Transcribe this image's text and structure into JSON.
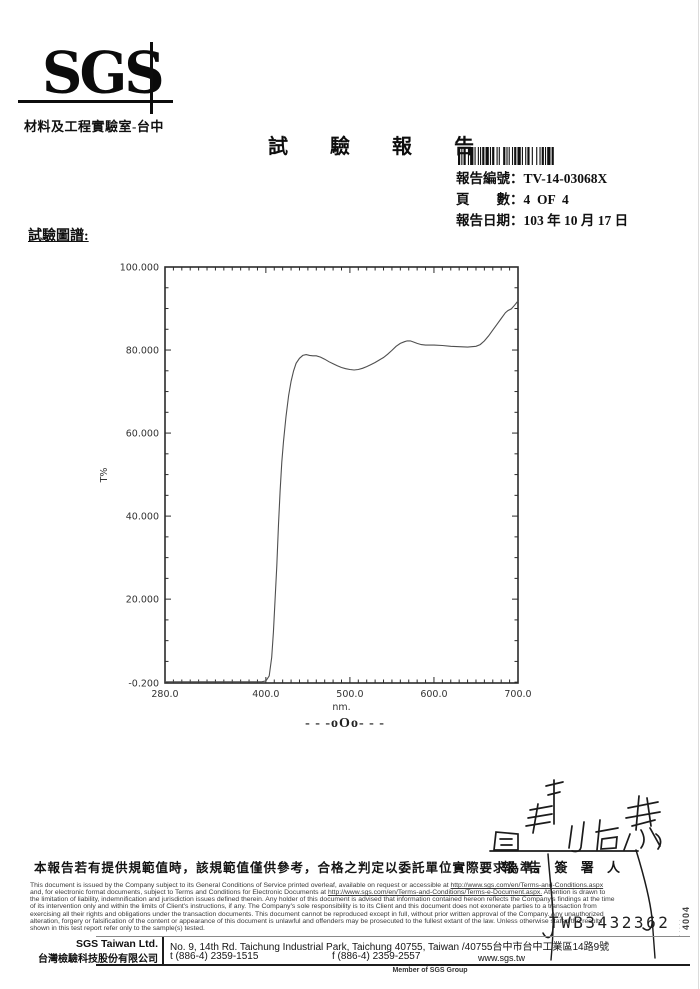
{
  "header": {
    "logo_text": "SGS",
    "lab_name": "材料及工程實驗室-台中",
    "title": "試　驗　報　告",
    "report_no_label": "報告編號：",
    "report_no_value": "TV-14-03068X",
    "page_label": "頁　　數：",
    "page_value": "4  OF  4",
    "date_label": "報告日期：",
    "date_value": "103 年 10 月 17 日"
  },
  "section": {
    "chart_heading": "試驗圖譜:"
  },
  "chart_data": {
    "type": "line",
    "title": "",
    "xlabel": "nm.",
    "ylabel": "T%",
    "xlim": [
      280,
      700
    ],
    "ylim": [
      -0.2,
      100
    ],
    "grid": false,
    "legend": "none",
    "xticks": {
      "values": [
        280,
        400,
        500,
        600,
        700
      ],
      "labels": [
        "280.0",
        "400.0",
        "500.0",
        "600.0",
        "700.0"
      ]
    },
    "yticks": {
      "values": [
        100,
        80,
        60,
        40,
        20,
        -0.2
      ],
      "labels": [
        "100.000",
        "80.000",
        "60.000",
        "40.000",
        "20.000",
        "-0.200"
      ]
    },
    "x_minor_step": 10,
    "y_minor_step": 5,
    "series": [
      {
        "name": "transmittance-curve",
        "points": [
          [
            280,
            0.1
          ],
          [
            300,
            0.1
          ],
          [
            320,
            0.1
          ],
          [
            340,
            0.1
          ],
          [
            360,
            0.1
          ],
          [
            380,
            0.1
          ],
          [
            395,
            0.1
          ],
          [
            400,
            0.3
          ],
          [
            404,
            1.5
          ],
          [
            407,
            6
          ],
          [
            409,
            12
          ],
          [
            411,
            20
          ],
          [
            413,
            28
          ],
          [
            415,
            38
          ],
          [
            417,
            46
          ],
          [
            419,
            53
          ],
          [
            421,
            58
          ],
          [
            424,
            64
          ],
          [
            427,
            69
          ],
          [
            430,
            72.5
          ],
          [
            433,
            75
          ],
          [
            436,
            76.8
          ],
          [
            440,
            78
          ],
          [
            444,
            78.7
          ],
          [
            448,
            78.9
          ],
          [
            452,
            78.7
          ],
          [
            456,
            78.6
          ],
          [
            460,
            78.6
          ],
          [
            465,
            78.3
          ],
          [
            470,
            77.8
          ],
          [
            475,
            77.2
          ],
          [
            480,
            76.7
          ],
          [
            485,
            76.2
          ],
          [
            490,
            75.8
          ],
          [
            495,
            75.5
          ],
          [
            500,
            75.3
          ],
          [
            505,
            75.2
          ],
          [
            510,
            75.3
          ],
          [
            515,
            75.6
          ],
          [
            520,
            76
          ],
          [
            525,
            76.5
          ],
          [
            530,
            77
          ],
          [
            535,
            77.6
          ],
          [
            540,
            78.2
          ],
          [
            545,
            79
          ],
          [
            550,
            79.9
          ],
          [
            555,
            80.9
          ],
          [
            560,
            81.6
          ],
          [
            565,
            82
          ],
          [
            568,
            82.2
          ],
          [
            572,
            82.2
          ],
          [
            576,
            81.9
          ],
          [
            580,
            81.6
          ],
          [
            585,
            81.3
          ],
          [
            590,
            81.2
          ],
          [
            600,
            81.2
          ],
          [
            610,
            81.1
          ],
          [
            620,
            80.9
          ],
          [
            630,
            80.8
          ],
          [
            640,
            80.7
          ],
          [
            650,
            80.9
          ],
          [
            655,
            81.3
          ],
          [
            660,
            82.2
          ],
          [
            665,
            83.4
          ],
          [
            670,
            84.8
          ],
          [
            675,
            86.2
          ],
          [
            680,
            87.6
          ],
          [
            685,
            89
          ],
          [
            688,
            89.5
          ],
          [
            692,
            89.9
          ],
          [
            696,
            90.8
          ],
          [
            700,
            91.8
          ]
        ]
      }
    ]
  },
  "separator": "- - -oOo- - -",
  "footer": {
    "cn_note": "本報告若有提供規範值時，該規範值僅供參考，合格之判定以委託單位實際要求為準。",
    "signer_label": "報 告 簽 署 人",
    "stamp_number": "TWB3432362",
    "side_stamp": "4004",
    "side_marks": "·····",
    "disclaimer": {
      "l1_pre": "This document is issued by the Company subject to its General Conditions of Service printed overleaf, available on request or accessible at ",
      "l1_url": "http://www.sgs.com/en/Terms-and-Conditions.aspx",
      "l2_pre": "and, for electronic format documents, subject to Terms and Conditions for Electronic Documents at ",
      "l2_url": "http://www.sgs.com/en/Terms-and-Conditions/Terms-e-Document.aspx.",
      "l2_post": " Attention is drawn to",
      "l3": "the limitation of liability, indemnification and jurisdiction issues defined therein. Any holder of this document is advised that information contained hereon reflects the Company's findings at the time",
      "l4": "of its intervention only and within the limits of Client's instructions, if any. The Company's sole responsibility is to its Client and this document does not exonerate parties to a transaction from",
      "l5": "exercising all their rights and obligations under the transaction documents. This document cannot be reproduced except in full, without prior written approval of the Company. Any unauthorized",
      "l6": "alteration, forgery or falsification of the content or appearance of this document is unlawful and offenders may be prosecuted to the fullest extant of the law. Unless otherwise stated the results",
      "l7": "shown in this test report refer only to the sample(s) tested."
    },
    "company_en": "SGS Taiwan Ltd.",
    "company_cn": "台灣檢驗科技股份有限公司",
    "address": "No. 9, 14th Rd. Taichung Industrial Park, Taichung 40755, Taiwan /40755台中市台中工業區14路9號",
    "tel": "t (886-4) 2359-1515",
    "fax": "f (886-4) 2359-2557",
    "website": "www.sgs.tw",
    "member": "Member of SGS Group"
  }
}
